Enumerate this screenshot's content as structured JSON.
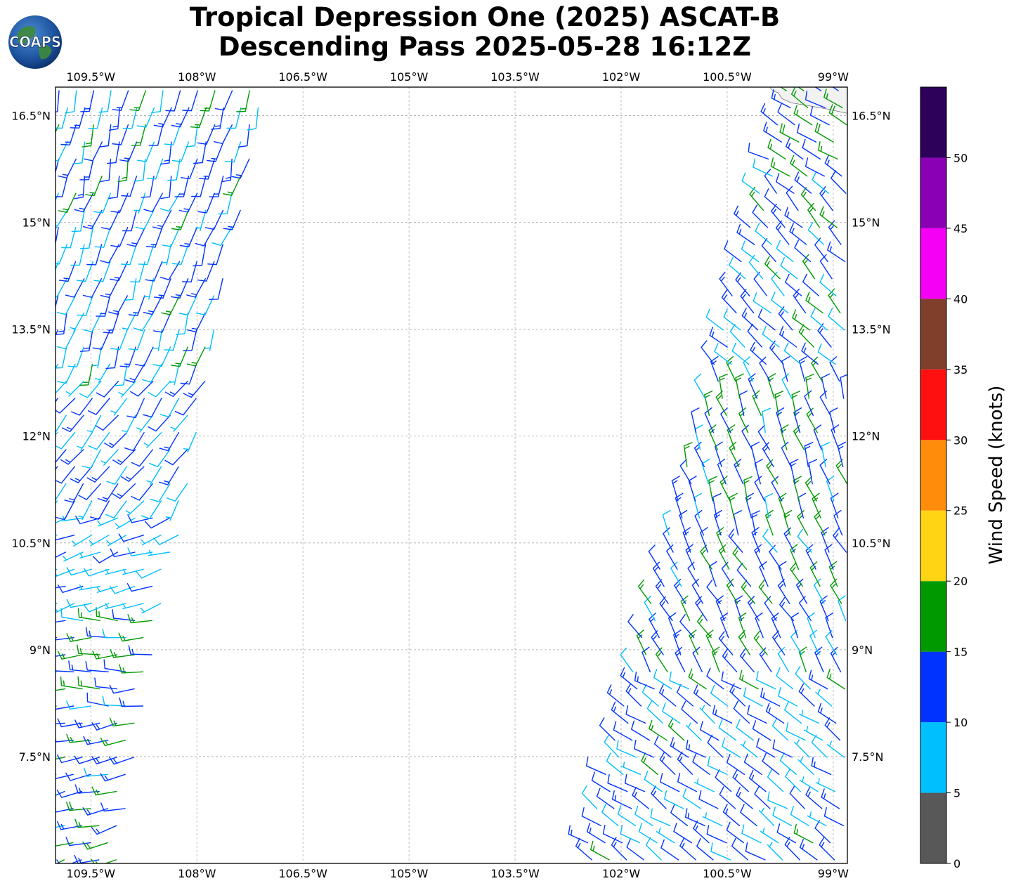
{
  "title": {
    "line1": "Tropical Depression One (2025) ASCAT-B",
    "line2": "Descending Pass 2025-05-28 16:12Z"
  },
  "logo": {
    "text": "COAPS",
    "icon": "globe-icon"
  },
  "map": {
    "lon_range": [
      -110.0,
      -98.8
    ],
    "lat_range": [
      6.0,
      16.9
    ],
    "lon_ticks": [
      {
        "value": -109.5,
        "label": "109.5°W"
      },
      {
        "value": -108.0,
        "label": "108°W"
      },
      {
        "value": -106.5,
        "label": "106.5°W"
      },
      {
        "value": -105.0,
        "label": "105°W"
      },
      {
        "value": -103.5,
        "label": "103.5°W"
      },
      {
        "value": -102.0,
        "label": "102°W"
      },
      {
        "value": -100.5,
        "label": "100.5°W"
      },
      {
        "value": -99.0,
        "label": "99°W"
      }
    ],
    "lat_ticks": [
      {
        "value": 16.5,
        "label": "16.5°N"
      },
      {
        "value": 15.0,
        "label": "15°N"
      },
      {
        "value": 13.5,
        "label": "13.5°N"
      },
      {
        "value": 12.0,
        "label": "12°N"
      },
      {
        "value": 10.5,
        "label": "10.5°N"
      },
      {
        "value": 9.0,
        "label": "9°N"
      },
      {
        "value": 7.5,
        "label": "7.5°N"
      }
    ],
    "grid": true,
    "coastline_color": "#555555"
  },
  "swaths": [
    {
      "name": "west",
      "lat_range": [
        6.0,
        16.9
      ],
      "west_lon_at_bottom": -110.0,
      "west_lon_at_top": -109.95,
      "east_lon_at_bottom": -109.15,
      "east_lon_at_top": -107.05,
      "regions": [
        {
          "lat": [
            15.6,
            16.9
          ],
          "dir_deg": 195,
          "speed_kt": 12
        },
        {
          "lat": [
            13.0,
            15.6
          ],
          "dir_deg": 200,
          "speed_kt": 11
        },
        {
          "lat": [
            11.0,
            13.0
          ],
          "dir_deg": 215,
          "speed_kt": 10
        },
        {
          "lat": [
            9.5,
            11.0
          ],
          "dir_deg": 250,
          "speed_kt": 8
        },
        {
          "lat": [
            8.0,
            9.5
          ],
          "dir_deg": 270,
          "speed_kt": 13
        },
        {
          "lat": [
            6.0,
            8.0
          ],
          "dir_deg": 255,
          "speed_kt": 14
        }
      ]
    },
    {
      "name": "east",
      "lat_range": [
        6.0,
        16.9
      ],
      "west_lon_at_bottom": -102.55,
      "west_lon_at_top": -99.65,
      "east_lon_at_bottom": -98.8,
      "east_lon_at_top": -98.8,
      "regions": [
        {
          "lat": [
            15.5,
            16.9
          ],
          "dir_deg": 300,
          "speed_kt": 14
        },
        {
          "lat": [
            13.0,
            15.5
          ],
          "dir_deg": 315,
          "speed_kt": 12
        },
        {
          "lat": [
            10.5,
            13.0
          ],
          "dir_deg": 340,
          "speed_kt": 13
        },
        {
          "lat": [
            8.5,
            10.5
          ],
          "dir_deg": 330,
          "speed_kt": 13
        },
        {
          "lat": [
            6.0,
            8.5
          ],
          "dir_deg": 305,
          "speed_kt": 11
        }
      ]
    }
  ],
  "colorbar": {
    "label": "Wind Speed (knots)",
    "bounds": [
      0,
      5,
      10,
      15,
      20,
      25,
      30,
      35,
      40,
      45,
      50,
      55
    ],
    "colors": [
      "#585858",
      "#00bfff",
      "#0033ff",
      "#009a00",
      "#ffd414",
      "#ff8c0a",
      "#ff1010",
      "#7f3f2a",
      "#f500f5",
      "#8a00b4",
      "#2d005a"
    ],
    "tick_labels": [
      "0",
      "5",
      "10",
      "15",
      "20",
      "25",
      "30",
      "35",
      "40",
      "45",
      "50"
    ]
  }
}
